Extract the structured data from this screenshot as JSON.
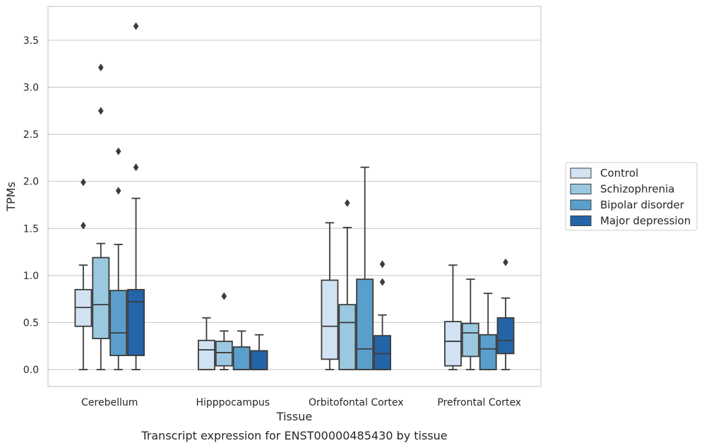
{
  "chart_data": {
    "type": "boxplot",
    "title": "",
    "caption": "Transcript expression for ENST00000485430 by tissue",
    "xlabel": "Tissue",
    "ylabel": "TPMs",
    "ylim": [
      -0.18,
      3.86
    ],
    "yticks": [
      0.0,
      0.5,
      1.0,
      1.5,
      2.0,
      2.5,
      3.0,
      3.5
    ],
    "ytick_labels": [
      "0.0",
      "0.5",
      "1.0",
      "1.5",
      "2.0",
      "2.5",
      "3.0",
      "3.5"
    ],
    "grid": "horizontal",
    "legend_position": "right",
    "categories": [
      "Cerebellum",
      "Hipppocampus",
      "Orbitofontal Cortex",
      "Prefrontal Cortex"
    ],
    "series": [
      {
        "name": "Control",
        "color": "#d1e2f2",
        "boxes": [
          {
            "whislo": 0.0,
            "q1": 0.46,
            "med": 0.66,
            "q3": 0.85,
            "whishi": 1.11,
            "fliers": [
              1.53,
              1.99
            ]
          },
          {
            "whislo": 0.0,
            "q1": 0.0,
            "med": 0.21,
            "q3": 0.31,
            "whishi": 0.55,
            "fliers": []
          },
          {
            "whislo": 0.0,
            "q1": 0.11,
            "med": 0.46,
            "q3": 0.95,
            "whishi": 1.56,
            "fliers": []
          },
          {
            "whislo": 0.0,
            "q1": 0.04,
            "med": 0.3,
            "q3": 0.51,
            "whishi": 1.11,
            "fliers": []
          }
        ]
      },
      {
        "name": "Schizophrenia",
        "color": "#9ac8e0",
        "boxes": [
          {
            "whislo": 0.0,
            "q1": 0.33,
            "med": 0.69,
            "q3": 1.19,
            "whishi": 1.34,
            "fliers": [
              2.75,
              3.21
            ]
          },
          {
            "whislo": 0.0,
            "q1": 0.04,
            "med": 0.18,
            "q3": 0.3,
            "whishi": 0.41,
            "fliers": [
              0.78
            ]
          },
          {
            "whislo": 0.0,
            "q1": 0.0,
            "med": 0.5,
            "q3": 0.69,
            "whishi": 1.51,
            "fliers": [
              1.77
            ]
          },
          {
            "whislo": 0.0,
            "q1": 0.14,
            "med": 0.39,
            "q3": 0.49,
            "whishi": 0.96,
            "fliers": []
          }
        ]
      },
      {
        "name": "Bipolar disorder",
        "color": "#5a9fcc",
        "boxes": [
          {
            "whislo": 0.0,
            "q1": 0.15,
            "med": 0.39,
            "q3": 0.84,
            "whishi": 1.33,
            "fliers": [
              1.9,
              2.32
            ]
          },
          {
            "whislo": 0.0,
            "q1": 0.0,
            "med": 0.0,
            "q3": 0.24,
            "whishi": 0.41,
            "fliers": []
          },
          {
            "whislo": 0.0,
            "q1": 0.0,
            "med": 0.22,
            "q3": 0.96,
            "whishi": 2.15,
            "fliers": []
          },
          {
            "whislo": 0.0,
            "q1": 0.0,
            "med": 0.22,
            "q3": 0.37,
            "whishi": 0.81,
            "fliers": []
          }
        ]
      },
      {
        "name": "Major depression",
        "color": "#2464a8",
        "boxes": [
          {
            "whislo": 0.0,
            "q1": 0.15,
            "med": 0.72,
            "q3": 0.85,
            "whishi": 1.82,
            "fliers": [
              2.15,
              3.65
            ]
          },
          {
            "whislo": 0.0,
            "q1": 0.0,
            "med": 0.0,
            "q3": 0.2,
            "whishi": 0.37,
            "fliers": []
          },
          {
            "whislo": 0.0,
            "q1": 0.0,
            "med": 0.17,
            "q3": 0.36,
            "whishi": 0.58,
            "fliers": [
              0.93,
              1.12
            ]
          },
          {
            "whislo": 0.0,
            "q1": 0.17,
            "med": 0.31,
            "q3": 0.55,
            "whishi": 0.76,
            "fliers": [
              1.14
            ]
          }
        ]
      }
    ]
  }
}
